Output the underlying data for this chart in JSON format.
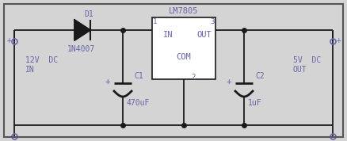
{
  "background_color": "#d4d4d4",
  "line_color": "#1a1a1a",
  "text_color": "#6666aa",
  "fig_width": 4.38,
  "fig_height": 1.78,
  "ic_label": "LM7805",
  "ic_in_label": "IN",
  "ic_out_label": "OUT",
  "ic_com_label": "COM",
  "diode_label": "D1",
  "diode_part": "1N4007",
  "cap1_label": "C1",
  "cap1_value": "470uF",
  "cap2_label": "C2",
  "cap2_value": "1uF",
  "input_plus": "+",
  "input_minus": "-",
  "output_plus": "+",
  "output_minus": "-",
  "input_label1": "12V  DC",
  "input_label2": "IN",
  "output_label1": "5V  DC",
  "output_label2": "OUT",
  "pin1": "1",
  "pin2": "2",
  "pin3": "3"
}
